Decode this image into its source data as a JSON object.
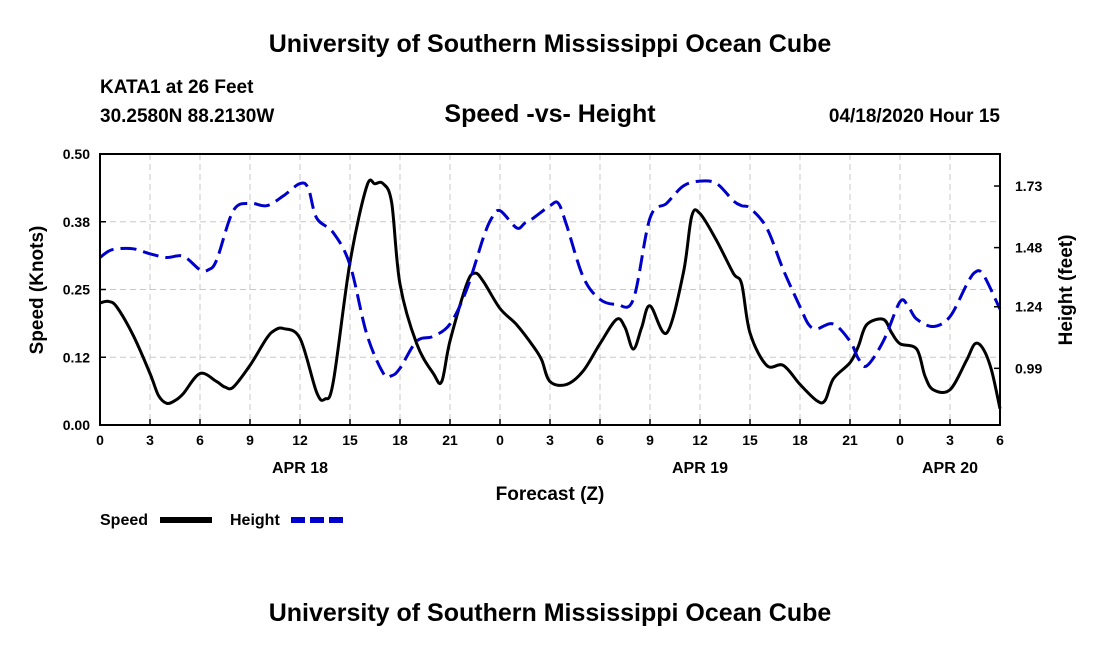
{
  "header": {
    "banner": "University of Southern Mississippi Ocean Cube",
    "station": "KATA1 at 26 Feet",
    "coords": "30.2580N 88.2130W",
    "date": "04/18/2020 Hour 15"
  },
  "footer": {
    "banner": "University of Southern Mississippi Ocean Cube"
  },
  "chart_data": {
    "type": "line",
    "title": "Speed -vs- Height",
    "xlabel": "Forecast (Z)",
    "ylabel": "Speed (Knots)",
    "ylabel_right": "Height (feet)",
    "x_unit": "hours since 00Z APR 18",
    "xlim": [
      0,
      54
    ],
    "ylim": [
      0,
      0.5
    ],
    "ylim_right": [
      0.76,
      1.86
    ],
    "yticks": [
      "0.00",
      "0.12",
      "0.25",
      "0.38",
      "0.50"
    ],
    "yticks_right": [
      "0.99",
      "1.24",
      "1.48",
      "1.73"
    ],
    "xtick_labels": [
      "0",
      "3",
      "6",
      "9",
      "12",
      "15",
      "18",
      "21",
      "0",
      "3",
      "6",
      "9",
      "12",
      "15",
      "18",
      "21",
      "0",
      "3",
      "6"
    ],
    "date_labels": [
      {
        "label": "APR 18",
        "hour": 12
      },
      {
        "label": "APR 19",
        "hour": 36
      },
      {
        "label": "APR 20",
        "hour": 51
      }
    ],
    "grid": true,
    "legend_position": "bottom-left",
    "series": [
      {
        "name": "Speed",
        "axis": "left",
        "color": "#000000",
        "style": "solid",
        "x": [
          0,
          0.5,
          1,
          2,
          3,
          3.5,
          4,
          4.5,
          5,
          6,
          7,
          7.5,
          8,
          9,
          10,
          10.5,
          11,
          12,
          13,
          13.5,
          14,
          15,
          16,
          16.5,
          17,
          17.5,
          18,
          19,
          20,
          20.5,
          21,
          22,
          22.5,
          23,
          24,
          25,
          26,
          26.5,
          27,
          28,
          29,
          30,
          31,
          31.5,
          32,
          32.5,
          33,
          34,
          35,
          35.5,
          36,
          37,
          38,
          38.5,
          39,
          40,
          41,
          42,
          43,
          43.5,
          44,
          45,
          45.5,
          46,
          47,
          47.5,
          48,
          49,
          49.5,
          50,
          51,
          52,
          52.5,
          53,
          53.5,
          54
        ],
        "values": [
          0.225,
          0.228,
          0.218,
          0.165,
          0.095,
          0.055,
          0.04,
          0.045,
          0.058,
          0.095,
          0.08,
          0.07,
          0.07,
          0.11,
          0.16,
          0.175,
          0.178,
          0.16,
          0.06,
          0.048,
          0.08,
          0.3,
          0.44,
          0.445,
          0.445,
          0.41,
          0.26,
          0.15,
          0.095,
          0.08,
          0.155,
          0.26,
          0.28,
          0.265,
          0.215,
          0.185,
          0.145,
          0.12,
          0.08,
          0.075,
          0.1,
          0.15,
          0.195,
          0.18,
          0.14,
          0.18,
          0.22,
          0.17,
          0.28,
          0.385,
          0.39,
          0.34,
          0.28,
          0.26,
          0.17,
          0.11,
          0.11,
          0.075,
          0.045,
          0.045,
          0.085,
          0.115,
          0.145,
          0.185,
          0.195,
          0.17,
          0.15,
          0.14,
          0.09,
          0.065,
          0.065,
          0.12,
          0.15,
          0.14,
          0.1,
          0.03
        ]
      },
      {
        "name": "Height",
        "axis": "right",
        "color": "#0000cc",
        "style": "dashed",
        "x": [
          0,
          0.5,
          1,
          2,
          3,
          4,
          5,
          6,
          6.5,
          7,
          8,
          9,
          10,
          11,
          12,
          12.5,
          13,
          14,
          15,
          16,
          17,
          17.5,
          18,
          19,
          20,
          21,
          22,
          23,
          23.5,
          24,
          25,
          25.5,
          26,
          27,
          27.5,
          28,
          29,
          30,
          31,
          32,
          33,
          34,
          35,
          36,
          37,
          38,
          38.5,
          39,
          40,
          41,
          42,
          42.5,
          43,
          44,
          45,
          45.5,
          46,
          47,
          48,
          48.5,
          49,
          50,
          51,
          52,
          52.5,
          53,
          54
        ],
        "values": [
          1.44,
          1.465,
          1.475,
          1.475,
          1.455,
          1.44,
          1.445,
          1.39,
          1.39,
          1.43,
          1.63,
          1.66,
          1.65,
          1.69,
          1.74,
          1.72,
          1.6,
          1.54,
          1.41,
          1.13,
          0.97,
          0.96,
          0.99,
          1.1,
          1.12,
          1.17,
          1.31,
          1.52,
          1.6,
          1.63,
          1.56,
          1.58,
          1.6,
          1.65,
          1.66,
          1.57,
          1.36,
          1.27,
          1.25,
          1.27,
          1.6,
          1.66,
          1.73,
          1.75,
          1.74,
          1.67,
          1.65,
          1.64,
          1.56,
          1.39,
          1.24,
          1.17,
          1.15,
          1.17,
          1.1,
          1.03,
          1.0,
          1.1,
          1.26,
          1.24,
          1.19,
          1.16,
          1.2,
          1.33,
          1.38,
          1.37,
          1.23
        ]
      }
    ]
  }
}
